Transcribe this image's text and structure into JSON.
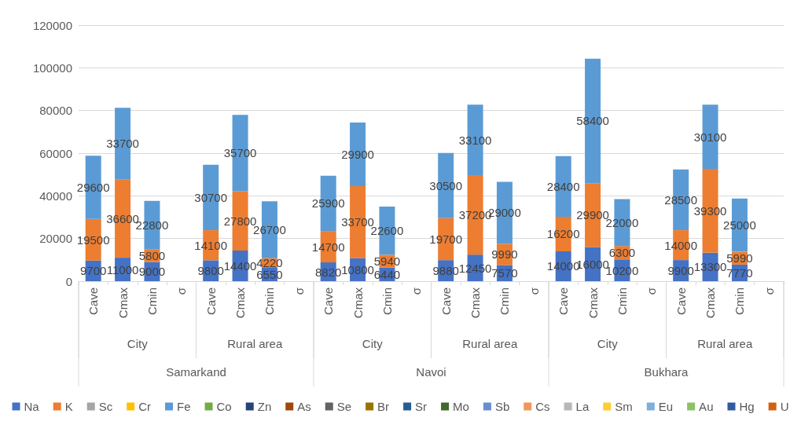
{
  "chart_data": {
    "type": "bar",
    "stacked": true,
    "categories": [
      "Cave",
      "Cmax",
      "Cmin",
      "σ",
      "Cave",
      "Cmax",
      "Cmin",
      "σ",
      "Cave",
      "Cmax",
      "Cmin",
      "σ",
      "Cave",
      "Cmax",
      "Cmin",
      "σ",
      "Cave",
      "Cmax",
      "Cmin",
      "σ",
      "Cave",
      "Cmax",
      "Cmin",
      "σ"
    ],
    "series": [
      {
        "name": "Na",
        "color": "#4472c4",
        "values": [
          9700,
          11000,
          9000,
          null,
          9800,
          14400,
          6550,
          null,
          8820,
          10800,
          6440,
          null,
          9880,
          12450,
          7570,
          null,
          14000,
          16000,
          10200,
          null,
          9900,
          13300,
          7770,
          null
        ]
      },
      {
        "name": "K",
        "color": "#ed7d31",
        "values": [
          19500,
          36600,
          5800,
          null,
          14100,
          27800,
          4220,
          null,
          14700,
          33700,
          5940,
          null,
          19700,
          37200,
          9990,
          null,
          16200,
          29900,
          6300,
          null,
          14000,
          39300,
          5990,
          null
        ]
      },
      {
        "name": "Sc",
        "color": "#a5a5a5",
        "values": [
          null,
          null,
          null,
          null,
          null,
          null,
          null,
          null,
          null,
          null,
          null,
          null,
          null,
          null,
          null,
          null,
          null,
          null,
          null,
          null,
          null,
          null,
          null,
          null
        ]
      },
      {
        "name": "Cr",
        "color": "#ffc000",
        "values": [
          null,
          null,
          null,
          null,
          null,
          null,
          null,
          null,
          null,
          null,
          null,
          null,
          null,
          null,
          null,
          null,
          null,
          null,
          null,
          null,
          null,
          null,
          null,
          null
        ]
      },
      {
        "name": "Fe",
        "color": "#5b9bd5",
        "values": [
          29600,
          33700,
          22800,
          null,
          30700,
          35700,
          26700,
          null,
          25900,
          29900,
          22600,
          null,
          30500,
          33100,
          29000,
          null,
          28400,
          58400,
          22000,
          null,
          28500,
          30100,
          25000,
          null
        ]
      },
      {
        "name": "Co",
        "color": "#70ad47",
        "values": [
          null,
          null,
          null,
          null,
          null,
          null,
          null,
          null,
          null,
          null,
          null,
          null,
          null,
          null,
          null,
          null,
          null,
          null,
          null,
          null,
          null,
          null,
          null,
          null
        ]
      },
      {
        "name": "Zn",
        "color": "#264478",
        "values": [
          null,
          null,
          null,
          null,
          null,
          null,
          null,
          null,
          null,
          null,
          null,
          null,
          null,
          null,
          null,
          null,
          null,
          null,
          null,
          null,
          null,
          null,
          null,
          null
        ]
      },
      {
        "name": "As",
        "color": "#9e480e",
        "values": [
          null,
          null,
          null,
          null,
          null,
          null,
          null,
          null,
          null,
          null,
          null,
          null,
          null,
          null,
          null,
          null,
          null,
          null,
          null,
          null,
          null,
          null,
          null,
          null
        ]
      },
      {
        "name": "Se",
        "color": "#636363",
        "values": [
          null,
          null,
          null,
          null,
          null,
          null,
          null,
          null,
          null,
          null,
          null,
          null,
          null,
          null,
          null,
          null,
          null,
          null,
          null,
          null,
          null,
          null,
          null,
          null
        ]
      },
      {
        "name": "Br",
        "color": "#997300",
        "values": [
          null,
          null,
          null,
          null,
          null,
          null,
          null,
          null,
          null,
          null,
          null,
          null,
          null,
          null,
          null,
          null,
          null,
          null,
          null,
          null,
          null,
          null,
          null,
          null
        ]
      },
      {
        "name": "Sr",
        "color": "#255e91",
        "values": [
          null,
          null,
          null,
          null,
          null,
          null,
          null,
          null,
          null,
          null,
          null,
          null,
          null,
          null,
          null,
          null,
          null,
          null,
          null,
          null,
          null,
          null,
          null,
          null
        ]
      },
      {
        "name": "Mo",
        "color": "#43682b",
        "values": [
          null,
          null,
          null,
          null,
          null,
          null,
          null,
          null,
          null,
          null,
          null,
          null,
          null,
          null,
          null,
          null,
          null,
          null,
          null,
          null,
          null,
          null,
          null,
          null
        ]
      },
      {
        "name": "Sb",
        "color": "#698ed0",
        "values": [
          null,
          null,
          null,
          null,
          null,
          null,
          null,
          null,
          null,
          null,
          null,
          null,
          null,
          null,
          null,
          null,
          null,
          null,
          null,
          null,
          null,
          null,
          null,
          null
        ]
      },
      {
        "name": "Cs",
        "color": "#f1975a",
        "values": [
          null,
          null,
          null,
          null,
          null,
          null,
          null,
          null,
          null,
          null,
          null,
          null,
          null,
          null,
          null,
          null,
          null,
          null,
          null,
          null,
          null,
          null,
          null,
          null
        ]
      },
      {
        "name": "La",
        "color": "#b7b7b7",
        "values": [
          null,
          null,
          null,
          null,
          null,
          null,
          null,
          null,
          null,
          null,
          null,
          null,
          null,
          null,
          null,
          null,
          null,
          null,
          null,
          null,
          null,
          null,
          null,
          null
        ]
      },
      {
        "name": "Sm",
        "color": "#ffcd33",
        "values": [
          null,
          null,
          null,
          null,
          null,
          null,
          null,
          null,
          null,
          null,
          null,
          null,
          null,
          null,
          null,
          null,
          null,
          null,
          null,
          null,
          null,
          null,
          null,
          null
        ]
      },
      {
        "name": "Eu",
        "color": "#7cafdd",
        "values": [
          null,
          null,
          null,
          null,
          null,
          null,
          null,
          null,
          null,
          null,
          null,
          null,
          null,
          null,
          null,
          null,
          null,
          null,
          null,
          null,
          null,
          null,
          null,
          null
        ]
      },
      {
        "name": "Au",
        "color": "#8cc168",
        "values": [
          null,
          null,
          null,
          null,
          null,
          null,
          null,
          null,
          null,
          null,
          null,
          null,
          null,
          null,
          null,
          null,
          null,
          null,
          null,
          null,
          null,
          null,
          null,
          null
        ]
      },
      {
        "name": "Hg",
        "color": "#335aa1",
        "values": [
          null,
          null,
          null,
          null,
          null,
          null,
          null,
          null,
          null,
          null,
          null,
          null,
          null,
          null,
          null,
          null,
          null,
          null,
          null,
          null,
          null,
          null,
          null,
          null
        ]
      },
      {
        "name": "U",
        "color": "#d26012",
        "values": [
          null,
          null,
          null,
          null,
          null,
          null,
          null,
          null,
          null,
          null,
          null,
          null,
          null,
          null,
          null,
          null,
          null,
          null,
          null,
          null,
          null,
          null,
          null,
          null
        ]
      }
    ],
    "ylim": [
      0,
      120000
    ],
    "yticks": [
      0,
      20000,
      40000,
      60000,
      80000,
      100000,
      120000
    ],
    "grid": "y",
    "legend": "bottom",
    "data_labels": true,
    "annotations": [
      "City",
      "Rural area",
      "City",
      "Rural area",
      "City",
      "Rural area",
      "Samarkand",
      "Navoi",
      "Bukhara"
    ]
  }
}
